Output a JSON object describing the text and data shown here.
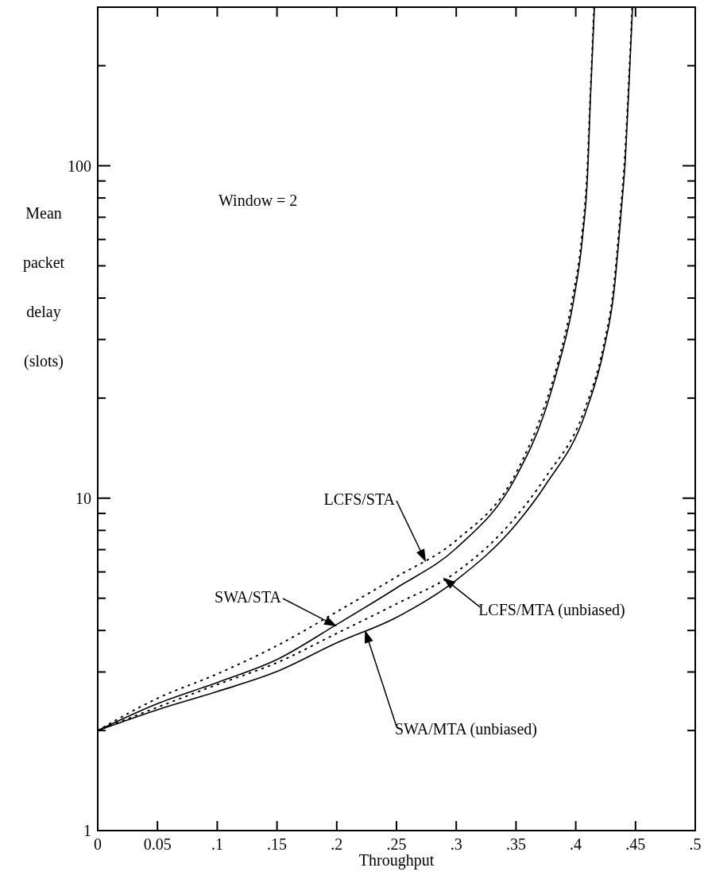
{
  "chart_data": {
    "type": "line",
    "xlabel": "Throughput",
    "ylabel": "Mean packet delay (slots)",
    "log": "y",
    "grid": false,
    "xlim": [
      0,
      0.5
    ],
    "ylim": [
      1,
      300
    ],
    "xticks": [
      0,
      {
        "value": 0.05,
        "label": "0.05"
      },
      {
        "value": 0.1,
        "label": ".1"
      },
      {
        "value": 0.15,
        "label": ".15"
      },
      {
        "value": 0.2,
        "label": ".2"
      },
      {
        "value": 0.25,
        "label": ".25"
      },
      {
        "value": 0.3,
        "label": ".3"
      },
      {
        "value": 0.35,
        "label": ".35"
      },
      {
        "value": 0.4,
        "label": ".4"
      },
      {
        "value": 0.45,
        "label": ".45"
      },
      {
        "value": 0.5,
        "label": ".5"
      }
    ],
    "yticks": [
      1,
      {
        "value": 2,
        "label": null
      },
      {
        "value": 3,
        "label": null
      },
      {
        "value": 4,
        "label": null
      },
      {
        "value": 5,
        "label": null
      },
      {
        "value": 6,
        "label": null
      },
      {
        "value": 7,
        "label": null
      },
      {
        "value": 8,
        "label": null
      },
      {
        "value": 9,
        "label": null
      },
      10,
      {
        "value": 20,
        "label": null
      },
      {
        "value": 30,
        "label": null
      },
      {
        "value": 40,
        "label": null
      },
      {
        "value": 50,
        "label": null
      },
      {
        "value": 60,
        "label": null
      },
      {
        "value": 70,
        "label": null
      },
      {
        "value": 80,
        "label": null
      },
      {
        "value": 90,
        "label": null
      },
      100,
      {
        "value": 200,
        "label": null
      }
    ],
    "series": [
      {
        "color": "#000000",
        "line_style": "dotted",
        "x": [
          0,
          0.05,
          0.1,
          0.15,
          0.2,
          0.25,
          0.3,
          0.35,
          0.3737,
          0.385,
          0.397,
          0.405,
          0.4095,
          0.412,
          0.4153
        ],
        "values": [
          2,
          2.5,
          2.96,
          3.6,
          4.55,
          5.8,
          7.47,
          11.9,
          18.8,
          25.5,
          39.5,
          61,
          96,
          158,
          300
        ]
      },
      {
        "color": "#000000",
        "line_style": "solid",
        "x": [
          0,
          0.05,
          0.1,
          0.15,
          0.2,
          0.25,
          0.3,
          0.35,
          0.3737,
          0.3856,
          0.398,
          0.4056,
          0.41,
          0.4122,
          0.4156
        ],
        "values": [
          2,
          2.41,
          2.79,
          3.27,
          4.17,
          5.37,
          7.07,
          11.6,
          18,
          25.1,
          39,
          60.6,
          95.7,
          157,
          300
        ]
      },
      {
        "color": "#000000",
        "line_style": "dotted",
        "x": [
          0,
          0.05,
          0.1,
          0.15,
          0.2,
          0.25,
          0.3,
          0.35,
          0.375,
          0.407,
          0.423,
          0.4315,
          0.4375,
          0.441,
          0.4445,
          0.4472
        ],
        "values": [
          2,
          2.35,
          2.75,
          3.2,
          3.92,
          4.81,
          5.99,
          8.8,
          11.6,
          18.3,
          28.5,
          42.5,
          73.5,
          106,
          184,
          300
        ]
      },
      {
        "color": "#000000",
        "line_style": "solid",
        "x": [
          0,
          0.05,
          0.1,
          0.15,
          0.2,
          0.25,
          0.3,
          0.35,
          0.375,
          0.408,
          0.4235,
          0.432,
          0.438,
          0.4415,
          0.4448,
          0.4475
        ],
        "values": [
          2,
          2.31,
          2.62,
          3.01,
          3.67,
          4.38,
          5.67,
          8.34,
          11,
          18,
          28,
          41.9,
          72.7,
          105,
          183,
          300
        ]
      }
    ],
    "annotations": [
      "Window = 2",
      "LCFS/STA",
      "SWA/STA",
      {
        "text": "LCFS/MTA (unbiased)",
        "x": 0.29,
        "y": 5.73
      },
      "SWA/MTA (unbiased)"
    ]
  }
}
